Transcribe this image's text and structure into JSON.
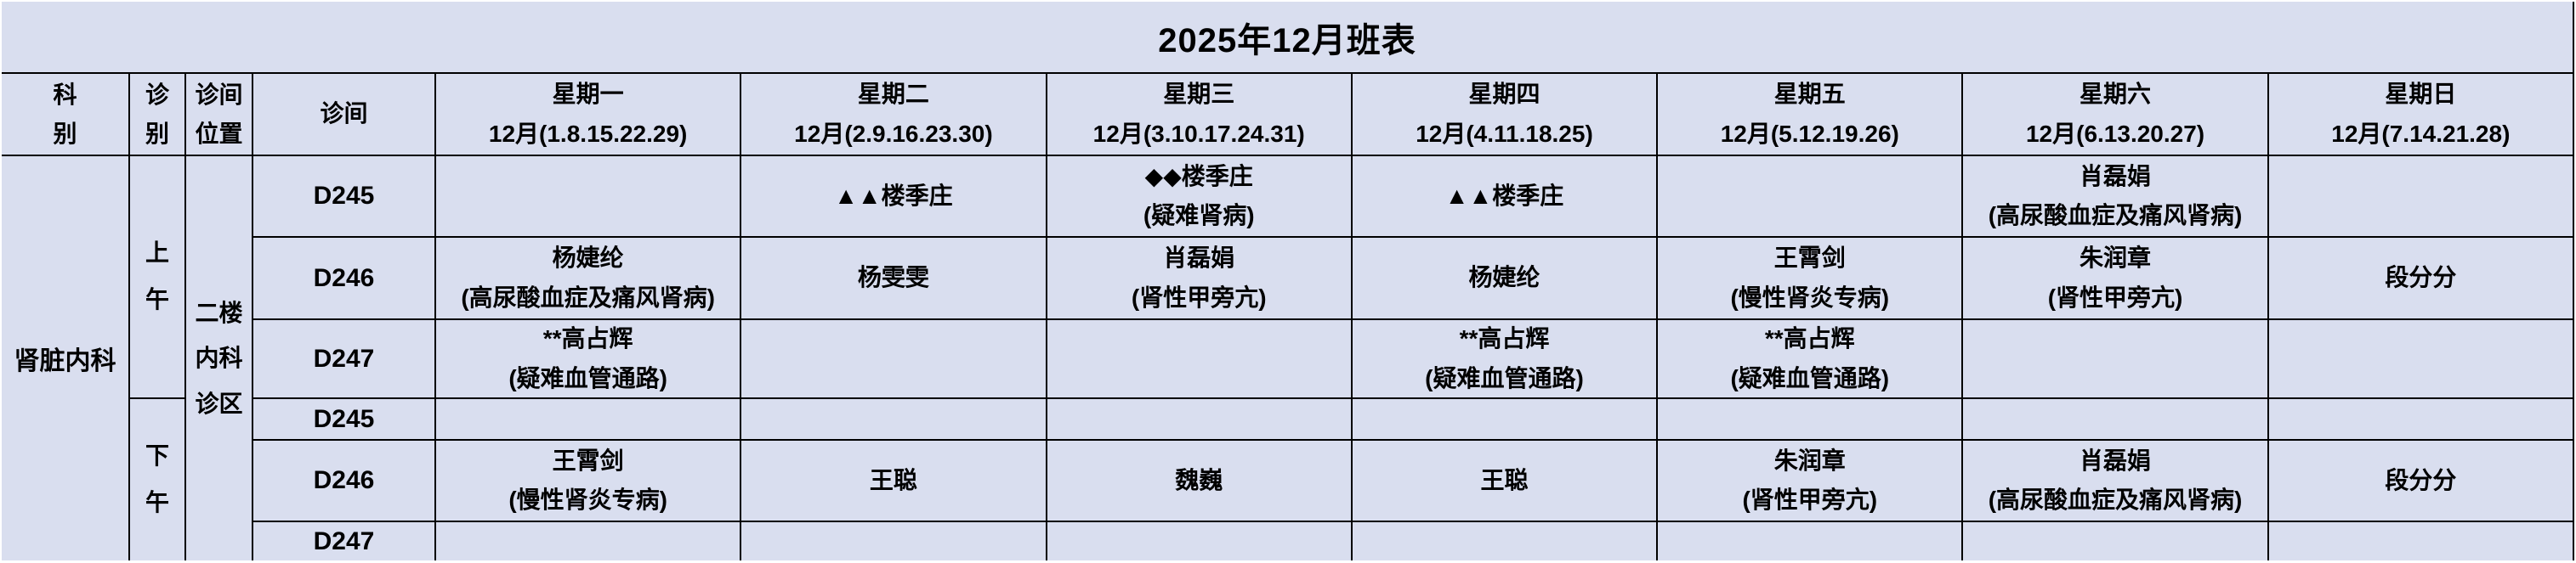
{
  "title": "2025年12月班表",
  "columns": {
    "dept": "科别",
    "session": "诊别",
    "location": "诊间位置",
    "room": "诊间"
  },
  "days": [
    {
      "weekday": "星期一",
      "dates": "12月(1.8.15.22.29)"
    },
    {
      "weekday": "星期二",
      "dates": "12月(2.9.16.23.30)"
    },
    {
      "weekday": "星期三",
      "dates": "12月(3.10.17.24.31)"
    },
    {
      "weekday": "星期四",
      "dates": "12月(4.11.18.25)"
    },
    {
      "weekday": "星期五",
      "dates": "12月(5.12.19.26)"
    },
    {
      "weekday": "星期六",
      "dates": "12月(6.13.20.27)"
    },
    {
      "weekday": "星期日",
      "dates": "12月(7.14.21.28)"
    }
  ],
  "dept": "肾脏内科",
  "location": "二楼内科诊区",
  "sessions": {
    "morning": "上午",
    "afternoon": "下午"
  },
  "rows": [
    {
      "session": "上午",
      "room": "D245",
      "cells": [
        {
          "name": "",
          "spec": ""
        },
        {
          "name": "▲▲楼季庄",
          "spec": ""
        },
        {
          "name": "◆◆楼季庄",
          "spec": "(疑难肾病)"
        },
        {
          "name": "▲▲楼季庄",
          "spec": ""
        },
        {
          "name": "",
          "spec": ""
        },
        {
          "name": "肖磊娟",
          "spec": "(高尿酸血症及痛风肾病)"
        },
        {
          "name": "",
          "spec": ""
        }
      ]
    },
    {
      "session": "上午",
      "room": "D246",
      "cells": [
        {
          "name": "杨婕纶",
          "spec": "(高尿酸血症及痛风肾病)"
        },
        {
          "name": "杨雯雯",
          "spec": ""
        },
        {
          "name": "肖磊娟",
          "spec": "(肾性甲旁亢)"
        },
        {
          "name": "杨婕纶",
          "spec": ""
        },
        {
          "name": "王霄剑",
          "spec": "(慢性肾炎专病)"
        },
        {
          "name": "朱润章",
          "spec": "(肾性甲旁亢)"
        },
        {
          "name": "段分分",
          "spec": ""
        }
      ]
    },
    {
      "session": "上午",
      "room": "D247",
      "cells": [
        {
          "name": "**高占辉",
          "spec": "(疑难血管通路)"
        },
        {
          "name": "",
          "spec": ""
        },
        {
          "name": "",
          "spec": ""
        },
        {
          "name": "**高占辉",
          "spec": "(疑难血管通路)"
        },
        {
          "name": "**高占辉",
          "spec": "(疑难血管通路)"
        },
        {
          "name": "",
          "spec": ""
        },
        {
          "name": "",
          "spec": ""
        }
      ]
    },
    {
      "session": "下午",
      "room": "D245",
      "cells": [
        {
          "name": "",
          "spec": ""
        },
        {
          "name": "",
          "spec": ""
        },
        {
          "name": "",
          "spec": ""
        },
        {
          "name": "",
          "spec": ""
        },
        {
          "name": "",
          "spec": ""
        },
        {
          "name": "",
          "spec": ""
        },
        {
          "name": "",
          "spec": ""
        }
      ]
    },
    {
      "session": "下午",
      "room": "D246",
      "cells": [
        {
          "name": "王霄剑",
          "spec": "(慢性肾炎专病)"
        },
        {
          "name": "王聪",
          "spec": ""
        },
        {
          "name": "魏巍",
          "spec": ""
        },
        {
          "name": "王聪",
          "spec": ""
        },
        {
          "name": "朱润章",
          "spec": "(肾性甲旁亢)"
        },
        {
          "name": "肖磊娟",
          "spec": "(高尿酸血症及痛风肾病)"
        },
        {
          "name": "段分分",
          "spec": ""
        }
      ]
    },
    {
      "session": "下午",
      "room": "D247",
      "cells": [
        {
          "name": "",
          "spec": ""
        },
        {
          "name": "",
          "spec": ""
        },
        {
          "name": "",
          "spec": ""
        },
        {
          "name": "",
          "spec": ""
        },
        {
          "name": "",
          "spec": ""
        },
        {
          "name": "",
          "spec": ""
        },
        {
          "name": "",
          "spec": ""
        }
      ]
    }
  ],
  "colors": {
    "background": "#D9DEEF",
    "grid_line": "#000000",
    "text": "#000000"
  }
}
